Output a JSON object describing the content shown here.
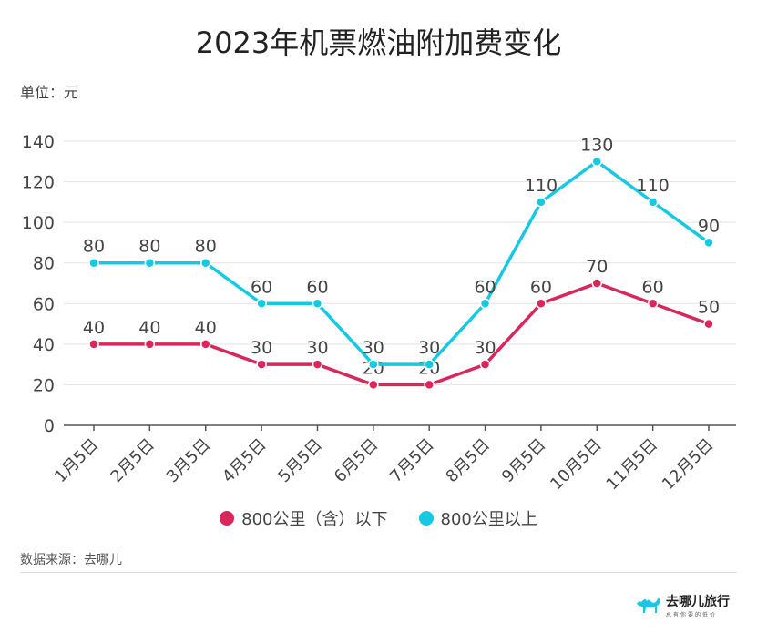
{
  "title": "2023年机票燃油附加费变化",
  "unit_label": "单位：元",
  "source": "数据来源：去哪儿",
  "logo": {
    "name": "去哪儿旅行",
    "tagline": "总有你要的低价",
    "icon": "camel-icon"
  },
  "colors": {
    "below": "#d8275a",
    "above": "#16c8e4"
  },
  "chart_data": {
    "type": "line",
    "title": "2023年机票燃油附加费变化",
    "ylabel": "单位：元",
    "ylim": [
      0,
      140
    ],
    "yticks": [
      0,
      20,
      40,
      60,
      80,
      100,
      120,
      140
    ],
    "grid": true,
    "legend": "bottom",
    "categories": [
      "1月5日",
      "2月5日",
      "3月5日",
      "4月5日",
      "5月5日",
      "6月5日",
      "7月5日",
      "8月5日",
      "9月5日",
      "10月5日",
      "11月5日",
      "12月5日"
    ],
    "series": [
      {
        "name": "800公里（含）以下",
        "color": "#d8275a",
        "values": [
          40,
          40,
          40,
          30,
          30,
          20,
          20,
          30,
          60,
          70,
          60,
          50
        ]
      },
      {
        "name": "800公里以上",
        "color": "#16c8e4",
        "values": [
          80,
          80,
          80,
          60,
          60,
          30,
          30,
          60,
          110,
          130,
          110,
          90
        ]
      }
    ]
  }
}
